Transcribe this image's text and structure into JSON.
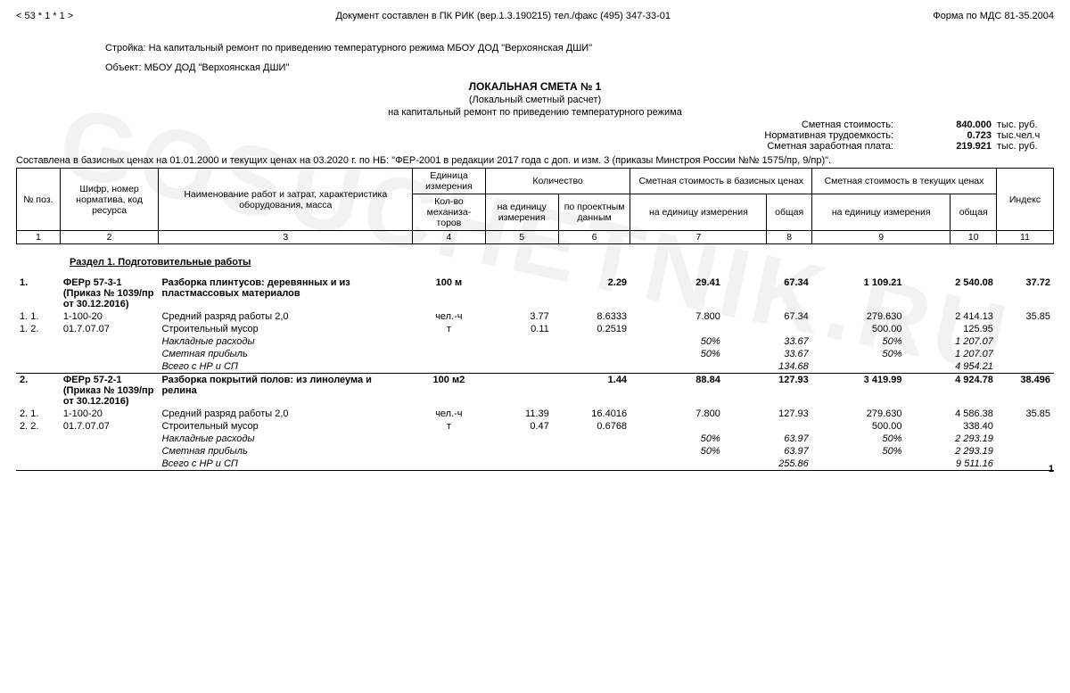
{
  "top": {
    "left": "< 53 * 1 * 1 >",
    "center": "Документ составлен в ПК РИК (вер.1.3.190215) тел./факс (495) 347-33-01",
    "right": "Форма по МДС 81-35.2004"
  },
  "header": {
    "stroyka_label": "Стройка:",
    "stroyka_value": "На капитальный ремонт по приведению температурного режима МБОУ ДОД \"Верхоянская ДШИ\"",
    "object_label": "Объект:",
    "object_value": "МБОУ ДОД \"Верхоянская ДШИ\"",
    "title": "ЛОКАЛЬНАЯ СМЕТА № 1",
    "subtitle": "(Локальный сметный расчет)",
    "purpose": "на капитальный ремонт по приведению температурного режима",
    "costs": [
      {
        "k": "Сметная стоимость:",
        "v": "840.000",
        "u": "тыс. руб."
      },
      {
        "k": "Нормативная трудоемкость:",
        "v": "0.723",
        "u": "тыс.чел.ч"
      },
      {
        "k": "Сметная заработная плата:",
        "v": "219.921",
        "u": "тыс. руб."
      }
    ],
    "basis": "Составлена в базисных ценах на 01.01.2000 и текущих ценах на 03.2020 г. по НБ: \"ФЕР-2001 в редакции 2017 года с доп. и изм. 3 (приказы Минстроя России №№ 1575/пр, 9/пр)\"."
  },
  "table_header": {
    "row1": [
      "№ поз.",
      "Шифр, номер норматива, код ресурса",
      "Наименование работ и затрат, характеристика оборудования, масса",
      "Единица измерения",
      "Количество",
      "Сметная стоимость в базисных ценах",
      "Сметная стоимость в текущих ценах",
      "Индекс"
    ],
    "row2": [
      "Кол-во механиза-торов",
      "на единицу измерения",
      "по проектным данным",
      "на единицу измерения",
      "общая",
      "на единицу измерения",
      "общая"
    ],
    "nums": [
      "1",
      "2",
      "3",
      "4",
      "5",
      "6",
      "7",
      "8",
      "9",
      "10",
      "11"
    ]
  },
  "section_title": "Раздел 1.   Подготовительные работы",
  "col_widths_pct": [
    4.2,
    9.5,
    24.5,
    7.0,
    6.5,
    7.5,
    9.0,
    8.5,
    9.0,
    8.8,
    5.5
  ],
  "rows": [
    {
      "c": [
        "1.",
        "ФЕРр 57-3-1 (Приказ № 1039/пр от 30.12.2016)",
        "Разборка плинтусов: деревянных и из пластмассовых материалов",
        "100 м",
        "",
        "2.29",
        "29.41",
        "67.34",
        "1 109.21",
        "2 540.08",
        "37.72"
      ],
      "style": "b"
    },
    {
      "c": [
        "1. 1.",
        "1-100-20",
        "Средний разряд работы 2,0",
        "чел.-ч",
        "3.77",
        "8.6333",
        "7.800",
        "67.34",
        "279.630",
        "2 414.13",
        "35.85"
      ]
    },
    {
      "c": [
        "1. 2.",
        "01.7.07.07",
        "Строительный мусор",
        "т",
        "0.11",
        "0.2519",
        "",
        "",
        "500.00",
        "125.95",
        ""
      ]
    },
    {
      "c": [
        "",
        "",
        "Накладные расходы",
        "",
        "",
        "",
        "50%",
        "33.67",
        "50%",
        "1 207.07",
        ""
      ],
      "style": "i"
    },
    {
      "c": [
        "",
        "",
        "Сметная прибыль",
        "",
        "",
        "",
        "50%",
        "33.67",
        "50%",
        "1 207.07",
        ""
      ],
      "style": "i"
    },
    {
      "c": [
        "",
        "",
        "Всего с НР и СП",
        "",
        "",
        "",
        "",
        "134.68",
        "",
        "4 954.21",
        ""
      ],
      "style": "i",
      "sep": true
    },
    {
      "c": [
        "2.",
        "ФЕРр 57-2-1 (Приказ № 1039/пр от 30.12.2016)",
        "Разборка покрытий полов: из линолеума и релина",
        "100 м2",
        "",
        "1.44",
        "88.84",
        "127.93",
        "3 419.99",
        "4 924.78",
        "38.496"
      ],
      "style": "b"
    },
    {
      "c": [
        "2. 1.",
        "1-100-20",
        "Средний разряд работы 2,0",
        "чел.-ч",
        "11.39",
        "16.4016",
        "7.800",
        "127.93",
        "279.630",
        "4 586.38",
        "35.85"
      ]
    },
    {
      "c": [
        "2. 2.",
        "01.7.07.07",
        "Строительный мусор",
        "т",
        "0.47",
        "0.6768",
        "",
        "",
        "500.00",
        "338.40",
        ""
      ]
    },
    {
      "c": [
        "",
        "",
        "Накладные расходы",
        "",
        "",
        "",
        "50%",
        "63.97",
        "50%",
        "2 293.19",
        ""
      ],
      "style": "i"
    },
    {
      "c": [
        "",
        "",
        "Сметная прибыль",
        "",
        "",
        "",
        "50%",
        "63.97",
        "50%",
        "2 293.19",
        ""
      ],
      "style": "i"
    },
    {
      "c": [
        "",
        "",
        "Всего с НР и СП",
        "",
        "",
        "",
        "",
        "255.86",
        "",
        "9 511.16",
        ""
      ],
      "style": "i",
      "sep": true
    }
  ],
  "page_number": "1",
  "watermark": "GOSUCHETNIK.RU"
}
